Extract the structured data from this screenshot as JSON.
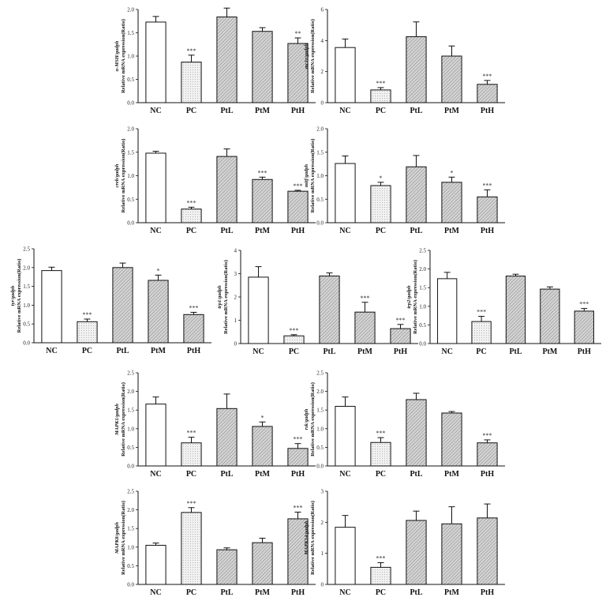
{
  "categories": [
    "NC",
    "PC",
    "PtL",
    "PtM",
    "PtH"
  ],
  "ylabel_suffix": "Relative mRNA expression(Ratio)",
  "colors": {
    "bar_stroke": "#111111",
    "axis": "#111111",
    "nc_fill": "#ffffff",
    "pc_fill": "#f1f1f1",
    "hatched_fill": "#d4d4d4"
  },
  "chart_data": [
    {
      "type": "bar",
      "gene": "α-MSH/gadph",
      "categories": [
        "NC",
        "PC",
        "PtL",
        "PtM",
        "PtH"
      ],
      "values": [
        1.73,
        0.87,
        1.84,
        1.53,
        1.27
      ],
      "errors": [
        0.12,
        0.15,
        0.19,
        0.08,
        0.12
      ],
      "significance": [
        "",
        "***",
        "",
        "",
        "**"
      ],
      "ylim": [
        0,
        2.0
      ],
      "yticks": [
        "0.0",
        "0.5",
        "1.0",
        "1.5",
        "2.0"
      ]
    },
    {
      "type": "bar",
      "gene": "mc1r/gadph",
      "categories": [
        "NC",
        "PC",
        "PtL",
        "PtM",
        "PtH"
      ],
      "values": [
        3.55,
        0.82,
        4.25,
        3.0,
        1.18
      ],
      "errors": [
        0.55,
        0.15,
        0.95,
        0.65,
        0.25
      ],
      "significance": [
        "",
        "***",
        "",
        "",
        "***"
      ],
      "ylim": [
        0,
        6
      ],
      "yticks": [
        "0",
        "2",
        "4",
        "6"
      ]
    },
    {
      "type": "bar",
      "gene": "creb/gadph",
      "categories": [
        "NC",
        "PC",
        "PtL",
        "PtM",
        "PtH"
      ],
      "values": [
        1.48,
        0.29,
        1.41,
        0.92,
        0.67
      ],
      "errors": [
        0.04,
        0.04,
        0.16,
        0.05,
        0.02
      ],
      "significance": [
        "",
        "***",
        "",
        "***",
        "***"
      ],
      "ylim": [
        0,
        2.0
      ],
      "yticks": [
        "0.0",
        "0.5",
        "1.0",
        "1.5",
        "2.0"
      ]
    },
    {
      "type": "bar",
      "gene": "mitf/gadph",
      "categories": [
        "NC",
        "PC",
        "PtL",
        "PtM",
        "PtH"
      ],
      "values": [
        1.26,
        0.79,
        1.19,
        0.86,
        0.55
      ],
      "errors": [
        0.16,
        0.07,
        0.24,
        0.11,
        0.15
      ],
      "significance": [
        "",
        "*",
        "",
        "*",
        "***"
      ],
      "ylim": [
        0,
        2.0
      ],
      "yticks": [
        "0.0",
        "0.5",
        "1.0",
        "1.5",
        "2.0"
      ]
    },
    {
      "type": "bar",
      "gene": "tyr/gadph",
      "categories": [
        "NC",
        "PC",
        "PtL",
        "PtM",
        "PtH"
      ],
      "values": [
        1.92,
        0.56,
        2.0,
        1.66,
        0.75
      ],
      "errors": [
        0.09,
        0.07,
        0.12,
        0.14,
        0.06
      ],
      "significance": [
        "",
        "***",
        "",
        "*",
        "***"
      ],
      "ylim": [
        0,
        2.5
      ],
      "yticks": [
        "0.0",
        "0.5",
        "1.0",
        "1.5",
        "2.0",
        "2.5"
      ]
    },
    {
      "type": "bar",
      "gene": "trp1/gadph",
      "categories": [
        "NC",
        "PC",
        "PtL",
        "PtM",
        "PtH"
      ],
      "values": [
        2.85,
        0.33,
        2.9,
        1.35,
        0.64
      ],
      "errors": [
        0.45,
        0.05,
        0.13,
        0.42,
        0.18
      ],
      "significance": [
        "",
        "***",
        "",
        "***",
        "***"
      ],
      "ylim": [
        0,
        4
      ],
      "yticks": [
        "0",
        "1",
        "2",
        "3",
        "4"
      ]
    },
    {
      "type": "bar",
      "gene": "trp2/gadph",
      "categories": [
        "NC",
        "PC",
        "PtL",
        "PtM",
        "PtH"
      ],
      "values": [
        1.74,
        0.59,
        1.81,
        1.46,
        0.87
      ],
      "errors": [
        0.17,
        0.14,
        0.05,
        0.06,
        0.07
      ],
      "significance": [
        "",
        "***",
        "",
        "",
        "***"
      ],
      "ylim": [
        0,
        2.5
      ],
      "yticks": [
        "0.0",
        "0.5",
        "1.0",
        "1.5",
        "2.0",
        "2.5"
      ]
    },
    {
      "type": "bar",
      "gene": "MAPK1/gadph",
      "categories": [
        "NC",
        "PC",
        "PtL",
        "PtM",
        "PtH"
      ],
      "values": [
        1.66,
        0.62,
        1.54,
        1.06,
        0.47
      ],
      "errors": [
        0.19,
        0.15,
        0.39,
        0.12,
        0.13
      ],
      "significance": [
        "",
        "***",
        "",
        "*",
        "***"
      ],
      "ylim": [
        0,
        2.5
      ],
      "yticks": [
        "0.0",
        "0.5",
        "1.0",
        "1.5",
        "2.0",
        "2.5"
      ]
    },
    {
      "type": "bar",
      "gene": "rsk/gadph",
      "categories": [
        "NC",
        "PC",
        "PtL",
        "PtM",
        "PtH"
      ],
      "values": [
        1.6,
        0.63,
        1.78,
        1.42,
        0.62
      ],
      "errors": [
        0.25,
        0.13,
        0.17,
        0.04,
        0.08
      ],
      "significance": [
        "",
        "***",
        "",
        "",
        "***"
      ],
      "ylim": [
        0,
        2.5
      ],
      "yticks": [
        "0.0",
        "0.5",
        "1.0",
        "1.5",
        "2.0",
        "2.5"
      ]
    },
    {
      "type": "bar",
      "gene": "MAPK8/gadph",
      "categories": [
        "NC",
        "PC",
        "PtL",
        "PtM",
        "PtH"
      ],
      "values": [
        1.05,
        1.93,
        0.93,
        1.12,
        1.76
      ],
      "errors": [
        0.06,
        0.13,
        0.05,
        0.12,
        0.18
      ],
      "significance": [
        "",
        "***",
        "",
        "",
        "***"
      ],
      "ylim": [
        0,
        2.5
      ],
      "yticks": [
        "0.0",
        "0.5",
        "1.0",
        "1.5",
        "2.0",
        "2.5"
      ]
    },
    {
      "type": "bar",
      "gene": "MAPK14/gadph",
      "categories": [
        "NC",
        "PC",
        "PtL",
        "PtM",
        "PtH"
      ],
      "values": [
        1.84,
        0.55,
        2.06,
        1.95,
        2.14
      ],
      "errors": [
        0.38,
        0.15,
        0.3,
        0.55,
        0.45
      ],
      "significance": [
        "",
        "***",
        "",
        "",
        ""
      ],
      "ylim": [
        0,
        3
      ],
      "yticks": [
        "0",
        "1",
        "2",
        "3"
      ]
    }
  ]
}
